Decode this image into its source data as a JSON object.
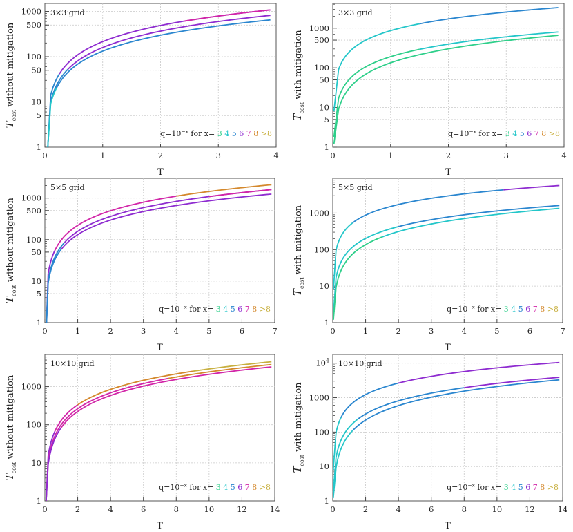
{
  "figure": {
    "legend": {
      "prefix": "q=10",
      "exponent": "−x",
      "suffix": " for x= ",
      "entries": [
        {
          "label": "3",
          "color": "#2ecf8a"
        },
        {
          "label": "4",
          "color": "#23c6c9"
        },
        {
          "label": "5",
          "color": "#2a86cf"
        },
        {
          "label": "6",
          "color": "#8e2bd0"
        },
        {
          "label": "7",
          "color": "#d225a8"
        },
        {
          "label": "8",
          "color": "#d4882c"
        },
        {
          "label": ">8",
          "color": "#c8b040"
        }
      ]
    },
    "axis_ticks_y_minor_note": "log scale"
  },
  "chart_data": [
    {
      "type": "line",
      "title": "3×3 grid",
      "xlabel": "T",
      "ylabel": "T_cost without mitigation",
      "ylabel_main": "T",
      "ylabel_sub": "cost",
      "ylabel_rest": " without mitigation",
      "xlim": [
        0,
        4
      ],
      "ylim": [
        1,
        1500
      ],
      "xticks": [
        0,
        1,
        2,
        3,
        4
      ],
      "yticks": [
        1,
        5,
        10,
        50,
        100,
        500,
        1000
      ],
      "series": [
        {
          "name": "upper",
          "x0": 0.05,
          "y0": 1,
          "x1": 0.1,
          "y1": 14,
          "x2": 3.9,
          "y2": 1080,
          "segments": [
            {
              "xmax": 0.25,
              "color": "#2a86cf"
            },
            {
              "xmax": 4,
              "color": "#8e2bd0"
            },
            {
              "xmax": 4,
              "color": "#d225a8",
              "from": 2.4
            }
          ]
        },
        {
          "name": "middle",
          "x0": 0.05,
          "y0": 1,
          "x1": 0.1,
          "y1": 10,
          "x2": 3.9,
          "y2": 820,
          "segments": [
            {
              "xmax": 0.4,
              "color": "#2a86cf"
            },
            {
              "xmax": 4,
              "color": "#8e2bd0"
            }
          ]
        },
        {
          "name": "lower",
          "x0": 0.05,
          "y0": 1,
          "x1": 0.1,
          "y1": 9,
          "x2": 3.9,
          "y2": 650,
          "segments": [
            {
              "xmax": 0.2,
              "color": "#23c6c9"
            },
            {
              "xmax": 4,
              "color": "#2a86cf"
            }
          ]
        }
      ]
    },
    {
      "type": "line",
      "title": "3×3 grid",
      "xlabel": "T",
      "ylabel": "T_cost with mitigation",
      "ylabel_main": "T",
      "ylabel_sub": "cost",
      "ylabel_rest": " with mitigation",
      "xlim": [
        0,
        4
      ],
      "ylim": [
        1,
        4200
      ],
      "xticks": [
        0,
        1,
        2,
        3,
        4
      ],
      "yticks": [
        1,
        5,
        10,
        50,
        100,
        500,
        1000
      ],
      "series": [
        {
          "name": "upper",
          "x0": 0.02,
          "y0": 8,
          "x1": 0.1,
          "y1": 90,
          "x2": 3.9,
          "y2": 3300,
          "segments": [
            {
              "xmax": 1.5,
              "color": "#23c6c9"
            },
            {
              "xmax": 4,
              "color": "#2a86cf"
            }
          ]
        },
        {
          "name": "middle",
          "x0": 0.02,
          "y0": 1.8,
          "x1": 0.1,
          "y1": 17,
          "x2": 3.9,
          "y2": 800,
          "segments": [
            {
              "xmax": 1.5,
              "color": "#2ecf8a"
            },
            {
              "xmax": 4,
              "color": "#23c6c9"
            }
          ]
        },
        {
          "name": "lower",
          "x0": 0.02,
          "y0": 1.2,
          "x1": 0.1,
          "y1": 9,
          "x2": 3.9,
          "y2": 660,
          "segments": [
            {
              "xmax": 4,
              "color": "#2ecf8a"
            }
          ]
        }
      ]
    },
    {
      "type": "line",
      "title": "5×5 grid",
      "xlabel": "T",
      "ylabel": "T_cost without mitigation",
      "ylabel_main": "T",
      "ylabel_sub": "cost",
      "ylabel_rest": " without mitigation",
      "xlim": [
        0,
        7
      ],
      "ylim": [
        1,
        3000
      ],
      "xticks": [
        0,
        1,
        2,
        3,
        4,
        5,
        6,
        7
      ],
      "yticks": [
        1,
        5,
        10,
        50,
        100,
        500,
        1000
      ],
      "series": [
        {
          "name": "upper",
          "x0": 0.05,
          "y0": 1,
          "x1": 0.1,
          "y1": 15,
          "x2": 6.9,
          "y2": 2100,
          "segments": [
            {
              "xmax": 0.3,
              "color": "#8e2bd0"
            },
            {
              "xmax": 4,
              "color": "#d225a8"
            },
            {
              "xmax": 7,
              "color": "#d4882c"
            }
          ]
        },
        {
          "name": "middle",
          "x0": 0.05,
          "y0": 1,
          "x1": 0.1,
          "y1": 10,
          "x2": 6.9,
          "y2": 1600,
          "segments": [
            {
              "xmax": 0.6,
              "color": "#2a86cf"
            },
            {
              "xmax": 7,
              "color": "#8e2bd0"
            },
            {
              "xmax": 7,
              "color": "#d225a8",
              "from": 5.0
            }
          ]
        },
        {
          "name": "lower",
          "x0": 0.05,
          "y0": 1,
          "x1": 0.1,
          "y1": 9,
          "x2": 6.9,
          "y2": 1250,
          "segments": [
            {
              "xmax": 0.5,
              "color": "#2a86cf"
            },
            {
              "xmax": 7,
              "color": "#8e2bd0"
            }
          ]
        }
      ]
    },
    {
      "type": "line",
      "title": "5×5 grid",
      "xlabel": "T",
      "ylabel": "T_cost with mitigation",
      "ylabel_main": "T",
      "ylabel_sub": "cost",
      "ylabel_rest": " with mitigation",
      "xlim": [
        0,
        7
      ],
      "ylim": [
        1,
        9000
      ],
      "xticks": [
        0,
        1,
        2,
        3,
        4,
        5,
        6,
        7
      ],
      "yticks": [
        1,
        10,
        100,
        1000
      ],
      "series": [
        {
          "name": "upper",
          "x0": 0.02,
          "y0": 8,
          "x1": 0.1,
          "y1": 95,
          "x2": 6.9,
          "y2": 5700,
          "segments": [
            {
              "xmax": 0.6,
              "color": "#23c6c9"
            },
            {
              "xmax": 5.2,
              "color": "#2a86cf"
            },
            {
              "xmax": 7,
              "color": "#8e2bd0"
            }
          ]
        },
        {
          "name": "middle",
          "x0": 0.02,
          "y0": 1.8,
          "x1": 0.1,
          "y1": 17,
          "x2": 6.9,
          "y2": 1620,
          "segments": [
            {
              "xmax": 2.0,
              "color": "#23c6c9"
            },
            {
              "xmax": 7,
              "color": "#2a86cf"
            }
          ]
        },
        {
          "name": "lower",
          "x0": 0.02,
          "y0": 1.2,
          "x1": 0.1,
          "y1": 9,
          "x2": 6.9,
          "y2": 1350,
          "segments": [
            {
              "xmax": 1.5,
              "color": "#2ecf8a"
            },
            {
              "xmax": 7,
              "color": "#23c6c9"
            }
          ]
        }
      ]
    },
    {
      "type": "line",
      "title": "10×10 grid",
      "xlabel": "T",
      "ylabel": "T_cost without mitigation",
      "ylabel_main": "T",
      "ylabel_sub": "cost",
      "ylabel_rest": " without mitigation",
      "xlim": [
        0,
        14
      ],
      "ylim": [
        1,
        7000
      ],
      "xticks": [
        0,
        2,
        4,
        6,
        8,
        10,
        12,
        14
      ],
      "yticks": [
        1,
        10,
        100,
        1000
      ],
      "series": [
        {
          "name": "upper",
          "x0": 0.08,
          "y0": 1,
          "x1": 0.2,
          "y1": 15,
          "x2": 13.8,
          "y2": 4500,
          "segments": [
            {
              "xmax": 0.6,
              "color": "#8e2bd0"
            },
            {
              "xmax": 2.0,
              "color": "#d225a8"
            },
            {
              "xmax": 9.0,
              "color": "#d4882c"
            },
            {
              "xmax": 14,
              "color": "#c8b040"
            }
          ]
        },
        {
          "name": "middle",
          "x0": 0.08,
          "y0": 1,
          "x1": 0.2,
          "y1": 11,
          "x2": 13.8,
          "y2": 3800,
          "segments": [
            {
              "xmax": 7.5,
              "color": "#d225a8"
            },
            {
              "xmax": 14,
              "color": "#d4882c"
            }
          ]
        },
        {
          "name": "lower",
          "x0": 0.08,
          "y0": 1,
          "x1": 0.2,
          "y1": 9,
          "x2": 13.8,
          "y2": 3300,
          "segments": [
            {
              "xmax": 1.0,
              "color": "#8e2bd0"
            },
            {
              "xmax": 14,
              "color": "#d225a8"
            }
          ]
        }
      ]
    },
    {
      "type": "line",
      "title": "10×10 grid",
      "xlabel": "T",
      "ylabel": "T_cost with mitigation",
      "ylabel_main": "T",
      "ylabel_sub": "cost",
      "ylabel_rest": " with mitigation",
      "xlim": [
        0,
        14
      ],
      "ylim": [
        1,
        18000
      ],
      "xticks": [
        0,
        2,
        4,
        6,
        8,
        10,
        12,
        14
      ],
      "yticks": [
        1,
        10,
        100,
        1000,
        10000
      ],
      "series": [
        {
          "name": "upper",
          "x0": 0.03,
          "y0": 8,
          "x1": 0.2,
          "y1": 95,
          "x2": 13.8,
          "y2": 10500,
          "segments": [
            {
              "xmax": 0.5,
              "color": "#23c6c9"
            },
            {
              "xmax": 4.0,
              "color": "#2a86cf"
            },
            {
              "xmax": 14,
              "color": "#8e2bd0"
            }
          ]
        },
        {
          "name": "middle",
          "x0": 0.03,
          "y0": 1.8,
          "x1": 0.2,
          "y1": 18,
          "x2": 13.8,
          "y2": 3900,
          "segments": [
            {
              "xmax": 1.5,
              "color": "#23c6c9"
            },
            {
              "xmax": 8.0,
              "color": "#2a86cf"
            },
            {
              "xmax": 14,
              "color": "#8e2bd0"
            }
          ]
        },
        {
          "name": "lower",
          "x0": 0.03,
          "y0": 1.2,
          "x1": 0.2,
          "y1": 9,
          "x2": 13.8,
          "y2": 3300,
          "segments": [
            {
              "xmax": 1.2,
              "color": "#23c6c9"
            },
            {
              "xmax": 14,
              "color": "#2a86cf"
            }
          ]
        }
      ]
    }
  ]
}
